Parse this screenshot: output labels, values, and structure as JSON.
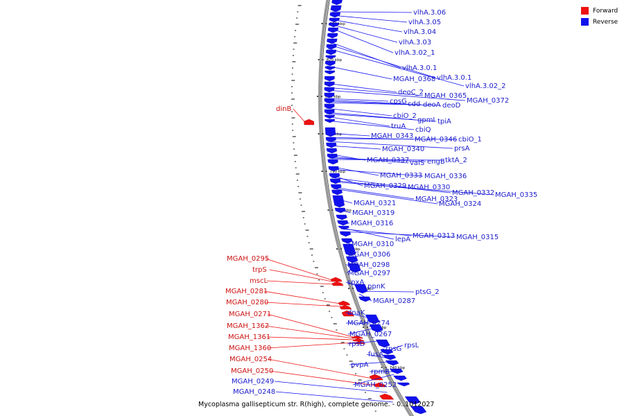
{
  "colors": {
    "forward": "#ee1111",
    "reverse": "#1111ee",
    "backbone": "#999999"
  },
  "legend": {
    "forward_label": "Forward",
    "reverse_label": "Reverse"
  },
  "caption": "Mycoplasma gallisepticum str. R(high), complete genome. - 0..1012027",
  "axis": {
    "ticks": [
      {
        "label": "830 kbp",
        "mbp": 830
      },
      {
        "label": "820 kbp",
        "mbp": 820
      },
      {
        "label": "810 kbp",
        "mbp": 810
      },
      {
        "label": "800 kbp",
        "mbp": 800
      },
      {
        "label": "790 kbp",
        "mbp": 790
      },
      {
        "label": "780 kbp",
        "mbp": 780
      },
      {
        "label": "770 kbp",
        "mbp": 770
      },
      {
        "label": "760 kbp",
        "mbp": 760
      },
      {
        "label": "750 kbp",
        "mbp": 750
      },
      {
        "label": "740 kbp",
        "mbp": 740
      }
    ]
  },
  "genes": {
    "reverse": [
      {
        "name": "vlhA.3.06"
      },
      {
        "name": "vlhA.3.05"
      },
      {
        "name": "vlhA.3.04"
      },
      {
        "name": "vlhA.3.03"
      },
      {
        "name": "vlhA.3.02_1"
      },
      {
        "name": "vlhA.3.0.1"
      },
      {
        "name": "vlhA.3.0.1"
      },
      {
        "name": "vlhA.3.02_2"
      },
      {
        "name": "MGAH_0368"
      },
      {
        "name": "deoC_2"
      },
      {
        "name": "MGAH_0365"
      },
      {
        "name": "MGAH_0372"
      },
      {
        "name": "cpsG"
      },
      {
        "name": "cdd"
      },
      {
        "name": "deoA"
      },
      {
        "name": "deoD"
      },
      {
        "name": "cbiO_2"
      },
      {
        "name": "gpmI"
      },
      {
        "name": "tpiA"
      },
      {
        "name": "truA"
      },
      {
        "name": "cbiQ"
      },
      {
        "name": "MGAH_0343"
      },
      {
        "name": "MGAH_0346"
      },
      {
        "name": "cbiO_1"
      },
      {
        "name": "prsA"
      },
      {
        "name": "MGAH_0340"
      },
      {
        "name": "MGAH_0337"
      },
      {
        "name": "valS"
      },
      {
        "name": "engB"
      },
      {
        "name": "tktA_2"
      },
      {
        "name": "MGAH_0333"
      },
      {
        "name": "MGAH_0336"
      },
      {
        "name": "MGAH_0329"
      },
      {
        "name": "MGAH_0330"
      },
      {
        "name": "MGAH_0332"
      },
      {
        "name": "MGAH_0335"
      },
      {
        "name": "MGAH_0323"
      },
      {
        "name": "MGAH_0324"
      },
      {
        "name": "MGAH_0321"
      },
      {
        "name": "MGAH_0319"
      },
      {
        "name": "MGAH_0316"
      },
      {
        "name": "lepA"
      },
      {
        "name": "MGAH_0313"
      },
      {
        "name": "MGAH_0315"
      },
      {
        "name": "MGAH_0310"
      },
      {
        "name": "MGAH_0306"
      },
      {
        "name": "MGAH_0298"
      },
      {
        "name": "MGAH_0297"
      },
      {
        "name": "spxA"
      },
      {
        "name": "ppnK"
      },
      {
        "name": "ptsG_2"
      },
      {
        "name": "MGAH_0287"
      },
      {
        "name": "dnaK"
      },
      {
        "name": "MGAH_0274"
      },
      {
        "name": "MGAH_0267"
      },
      {
        "name": "rpsD"
      },
      {
        "name": "rpsG"
      },
      {
        "name": "rpsL"
      },
      {
        "name": "fusA"
      },
      {
        "name": "pvpA"
      },
      {
        "name": "rpmB"
      },
      {
        "name": "MGAH_0252"
      },
      {
        "name": "MGAH_0249"
      },
      {
        "name": "MGAH_0248"
      }
    ],
    "forward": [
      {
        "name": "dinB"
      },
      {
        "name": "MGAH_0295"
      },
      {
        "name": "trpS"
      },
      {
        "name": "mscL"
      },
      {
        "name": "MGAH_0281"
      },
      {
        "name": "MGAH_0280"
      },
      {
        "name": "MGAH_0271"
      },
      {
        "name": "MGAH_1362"
      },
      {
        "name": "MGAH_1361"
      },
      {
        "name": "MGAH_1360"
      },
      {
        "name": "MGAH_0254"
      },
      {
        "name": "MGAH_0250"
      }
    ]
  }
}
